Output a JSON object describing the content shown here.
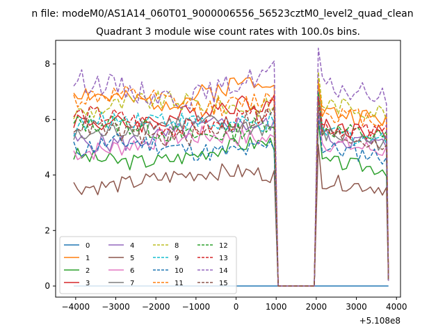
{
  "chart_data": {
    "type": "line",
    "suptitle": "n file: modeM0/AS1A14_060T01_9000006556_56523cztM0_level2_quad_clean",
    "title": "Quadrant 3 module wise count rates with 100.0s bins.",
    "xlabel": "",
    "ylabel": "",
    "x_offset_label": "+5.108e8",
    "xlim": [
      -4500,
      4100
    ],
    "ylim": [
      -0.4,
      8.85
    ],
    "xticks": [
      -4000,
      -3000,
      -2000,
      -1000,
      0,
      1000,
      2000,
      3000,
      4000
    ],
    "xtick_labels": [
      "−4000",
      "−3000",
      "−2000",
      "−1000",
      "0",
      "1000",
      "2000",
      "3000",
      "4000"
    ],
    "yticks": [
      0,
      2,
      4,
      6,
      8
    ],
    "ytick_labels": [
      "0",
      "2",
      "4",
      "6",
      "8"
    ],
    "grid": false,
    "legend_position": "lower-left",
    "bins": {
      "segment1": {
        "start": -4050,
        "end": 950,
        "step": 100
      },
      "gap": [
        1050,
        1950
      ],
      "segment2": {
        "start": 2050,
        "end": 3750,
        "step": 100
      },
      "last": 3800
    },
    "series": [
      {
        "name": "0",
        "color": "#1f77b4",
        "dashed": false,
        "level1": 0,
        "level2": 0,
        "amp": 0,
        "seed": 1
      },
      {
        "name": "1",
        "color": "#ff7f0e",
        "dashed": false,
        "level1": 6.9,
        "level2": 6.3,
        "amp": 0.3,
        "seed": 2
      },
      {
        "name": "2",
        "color": "#2ca02c",
        "dashed": false,
        "level1": 4.7,
        "level2": 4.5,
        "amp": 0.25,
        "seed": 3
      },
      {
        "name": "3",
        "color": "#d62728",
        "dashed": false,
        "level1": 6.1,
        "level2": 5.8,
        "amp": 0.3,
        "seed": 4
      },
      {
        "name": "4",
        "color": "#9467bd",
        "dashed": false,
        "level1": 5.4,
        "level2": 5.4,
        "amp": 0.3,
        "seed": 5
      },
      {
        "name": "5",
        "color": "#8c564b",
        "dashed": false,
        "level1": 3.8,
        "level2": 3.8,
        "amp": 0.25,
        "seed": 6
      },
      {
        "name": "6",
        "color": "#e377c2",
        "dashed": false,
        "level1": 5.1,
        "level2": 5.2,
        "amp": 0.3,
        "seed": 7
      },
      {
        "name": "7",
        "color": "#7f7f7f",
        "dashed": false,
        "level1": 5.6,
        "level2": 5.5,
        "amp": 0.3,
        "seed": 8
      },
      {
        "name": "8",
        "color": "#bcbd22",
        "dashed": true,
        "level1": 6.4,
        "level2": 6.6,
        "amp": 0.3,
        "seed": 9
      },
      {
        "name": "9",
        "color": "#17becf",
        "dashed": true,
        "level1": 5.8,
        "level2": 5.6,
        "amp": 0.3,
        "seed": 10
      },
      {
        "name": "10",
        "color": "#1f77b4",
        "dashed": true,
        "level1": 4.9,
        "level2": 5.0,
        "amp": 0.3,
        "seed": 11
      },
      {
        "name": "11",
        "color": "#ff7f0e",
        "dashed": true,
        "level1": 6.6,
        "level2": 6.3,
        "amp": 0.3,
        "seed": 12
      },
      {
        "name": "12",
        "color": "#2ca02c",
        "dashed": true,
        "level1": 5.6,
        "level2": 5.7,
        "amp": 0.3,
        "seed": 13
      },
      {
        "name": "13",
        "color": "#d62728",
        "dashed": true,
        "level1": 5.9,
        "level2": 5.8,
        "amp": 0.3,
        "seed": 14
      },
      {
        "name": "14",
        "color": "#9467bd",
        "dashed": true,
        "level1": 7.1,
        "level2": 7.2,
        "amp": 0.35,
        "seed": 15
      },
      {
        "name": "15",
        "color": "#8c564b",
        "dashed": true,
        "level1": 5.6,
        "level2": 5.5,
        "amp": 0.3,
        "seed": 16
      }
    ]
  }
}
